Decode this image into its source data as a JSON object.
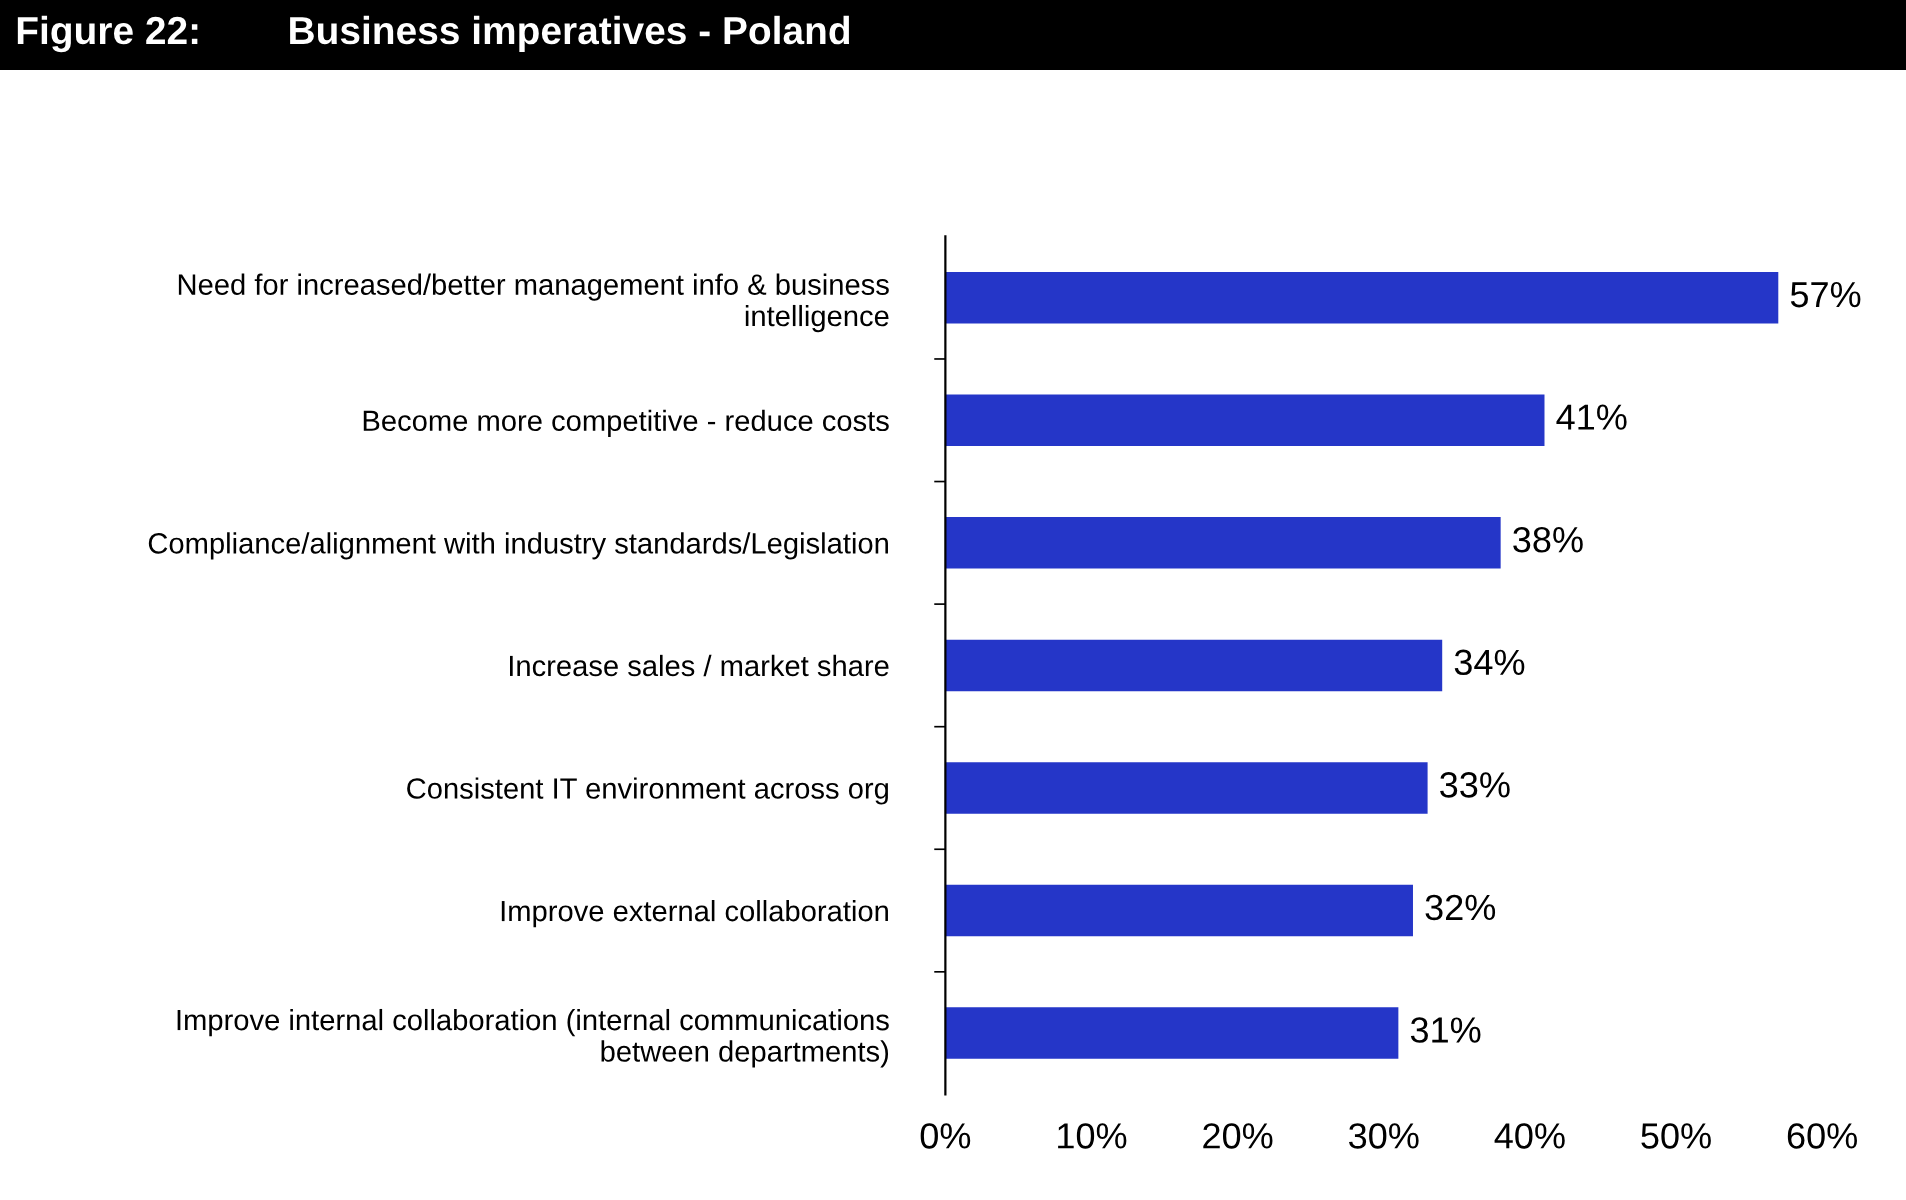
{
  "chart_data": {
    "type": "bar",
    "orientation": "horizontal",
    "title": "Figure 22:        Business imperatives - Poland",
    "categories": [
      "Need for increased/better management info & business\nintelligence",
      "Become more competitive - reduce costs",
      "Compliance/alignment with industry standards/Legislation",
      "Increase sales / market share",
      "Consistent IT environment across org",
      "Improve external collaboration",
      "Improve internal collaboration (internal communications\nbetween departments)"
    ],
    "values": [
      57,
      41,
      38,
      34,
      33,
      32,
      31
    ],
    "color": "#2536c8",
    "value_labels": [
      "57%",
      "41%",
      "38%",
      "34%",
      "33%",
      "32%",
      "31%"
    ],
    "xlim": [
      0,
      60
    ],
    "xticks": [
      {
        "value": 0,
        "label": "0%"
      },
      {
        "value": 10,
        "label": "10%"
      },
      {
        "value": 20,
        "label": "20%"
      },
      {
        "value": 30,
        "label": "30%"
      },
      {
        "value": 40,
        "label": "40%"
      },
      {
        "value": 50,
        "label": "50%"
      },
      {
        "value": 60,
        "label": "60%"
      }
    ],
    "grid": false,
    "legend": false
  }
}
